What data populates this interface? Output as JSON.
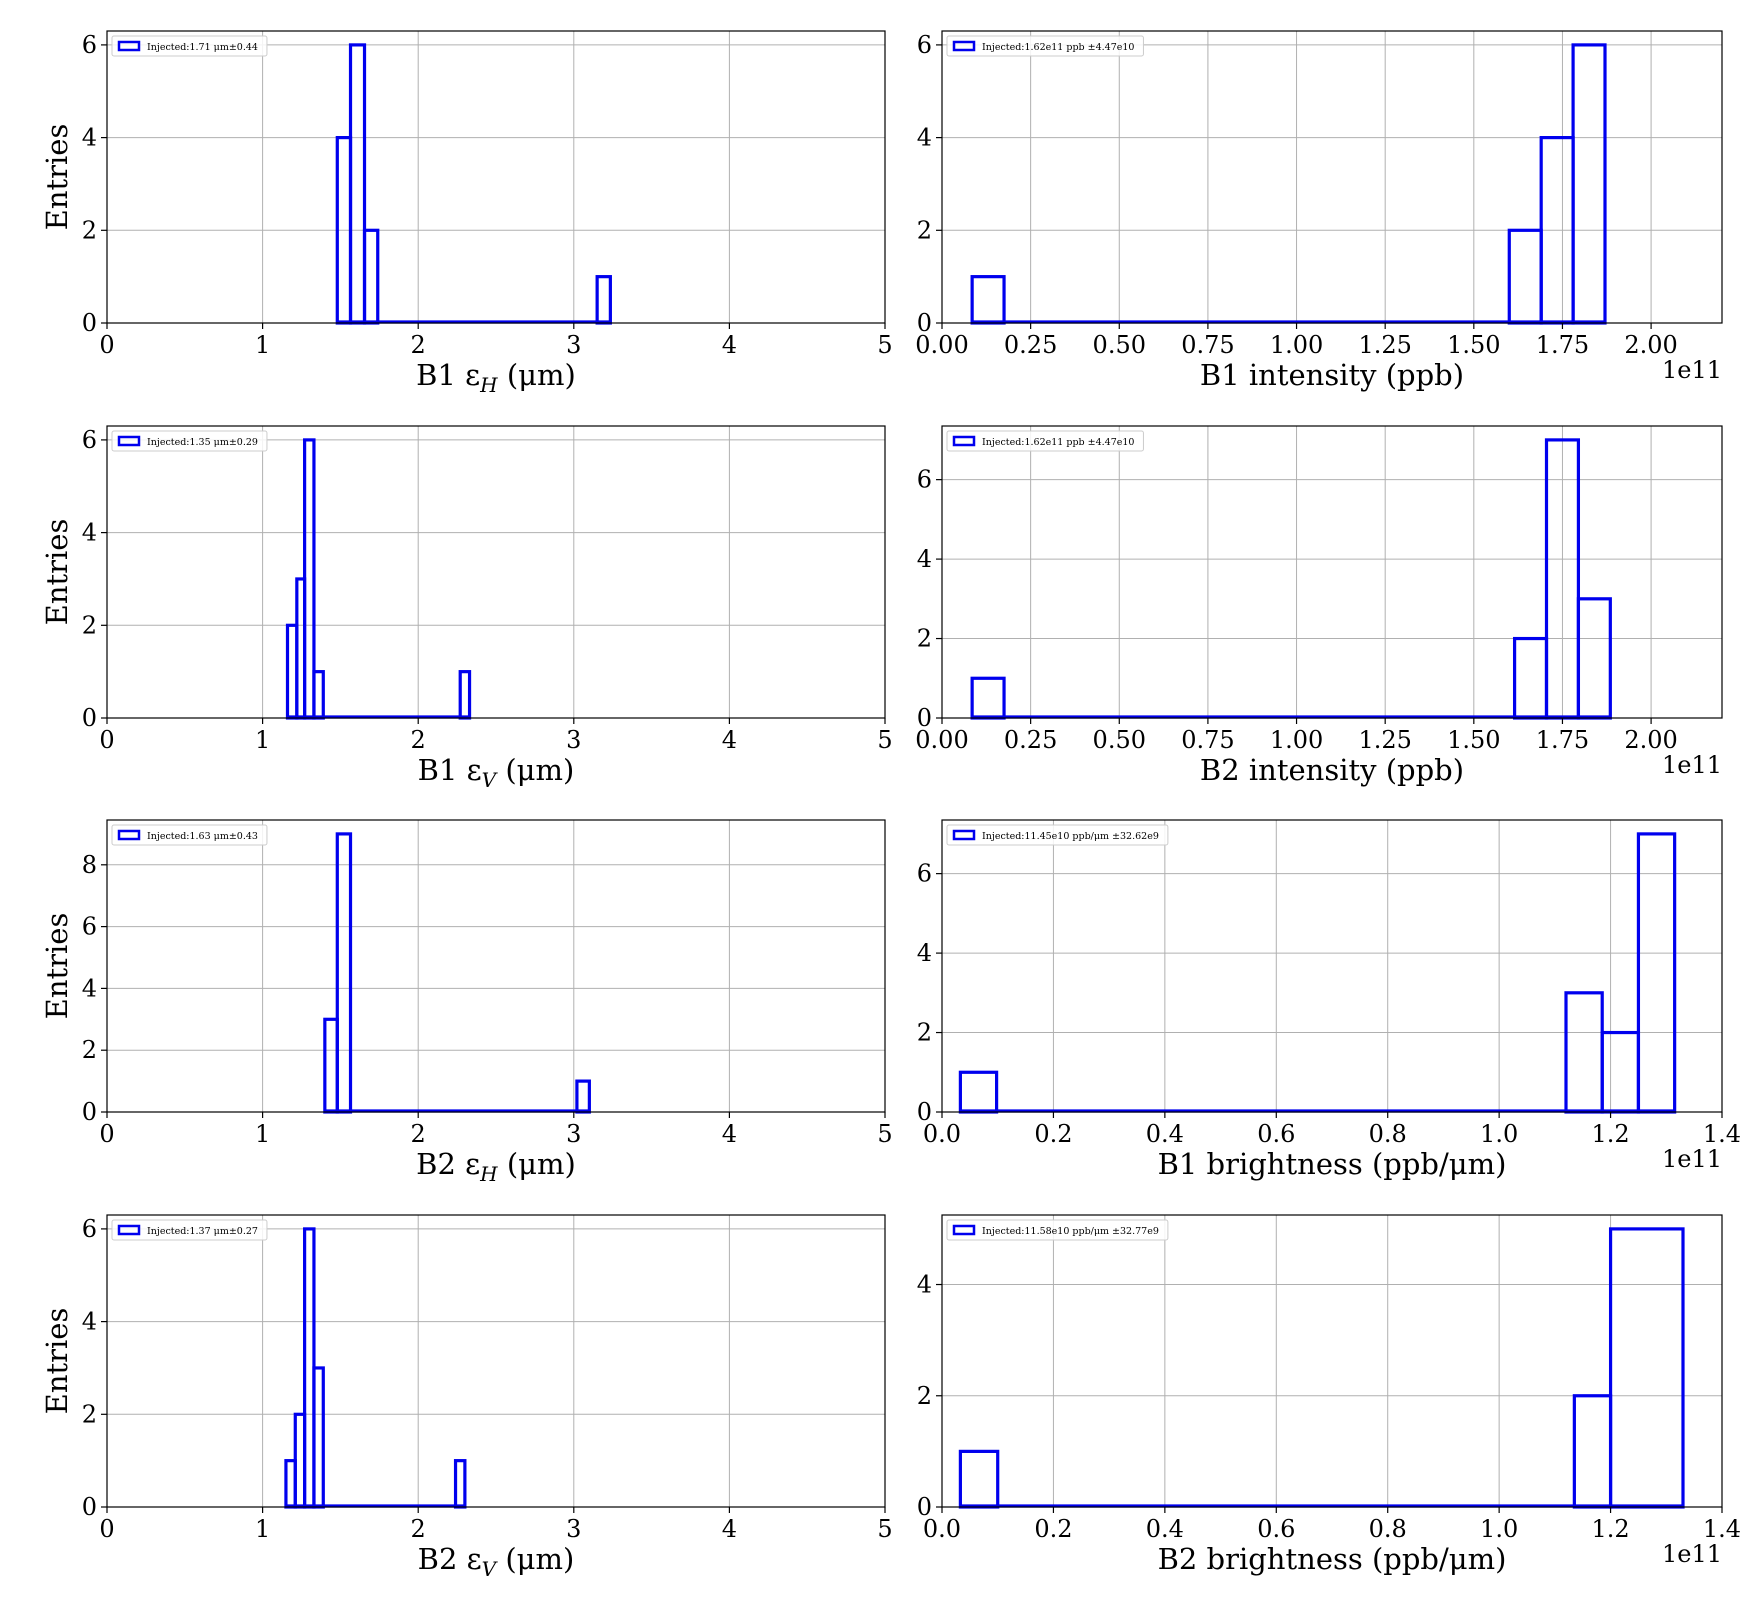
{
  "figure": {
    "chart_data": [
      {
        "type": "histogram",
        "xlabel": "B1 ε",
        "xlabel_sub": "H",
        "xlabel_unit": " (μm)",
        "ylabel": "Entries",
        "xlim": [
          0,
          5
        ],
        "ylim": [
          0,
          6.3
        ],
        "xticks": [
          0,
          1,
          2,
          3,
          4,
          5
        ],
        "xtick_labels": [
          "0",
          "1",
          "2",
          "3",
          "4",
          "5"
        ],
        "yticks": [
          0,
          2,
          4,
          6
        ],
        "ytick_labels": [
          "0",
          "2",
          "4",
          "6"
        ],
        "offset_text": "",
        "legend": "Injected:1.71 μm±0.44",
        "legend_loc": "upper left",
        "grid": true,
        "color": "#0000ee",
        "bins": [
          {
            "x0": 1.48,
            "x1": 1.565,
            "count": 4
          },
          {
            "x0": 1.565,
            "x1": 1.655,
            "count": 6
          },
          {
            "x0": 1.655,
            "x1": 1.74,
            "count": 2
          },
          {
            "x0": 3.15,
            "x1": 3.235,
            "count": 1
          }
        ]
      },
      {
        "type": "histogram",
        "xlabel": "B1 intensity (ppb)",
        "xlabel_sub": "",
        "xlabel_unit": "",
        "ylabel": "",
        "xlim": [
          0,
          2.2
        ],
        "ylim": [
          0,
          6.3
        ],
        "xticks": [
          0,
          0.25,
          0.5,
          0.75,
          1.0,
          1.25,
          1.5,
          1.75,
          2.0
        ],
        "xtick_labels": [
          "0.00",
          "0.25",
          "0.50",
          "0.75",
          "1.00",
          "1.25",
          "1.50",
          "1.75",
          "2.00"
        ],
        "yticks": [
          0,
          2,
          4,
          6
        ],
        "ytick_labels": [
          "0",
          "2",
          "4",
          "6"
        ],
        "offset_text": "1e11",
        "legend": "Injected:1.62e11 ppb ±4.47e10",
        "legend_loc": "upper left",
        "grid": true,
        "color": "#0000ee",
        "bins": [
          {
            "x0": 0.085,
            "x1": 0.175,
            "count": 1
          },
          {
            "x0": 1.6,
            "x1": 1.69,
            "count": 2
          },
          {
            "x0": 1.69,
            "x1": 1.78,
            "count": 4
          },
          {
            "x0": 1.78,
            "x1": 1.87,
            "count": 6
          }
        ]
      },
      {
        "type": "histogram",
        "xlabel": "B1 ε",
        "xlabel_sub": "V",
        "xlabel_unit": " (μm)",
        "ylabel": "Entries",
        "xlim": [
          0,
          5
        ],
        "ylim": [
          0,
          6.3
        ],
        "xticks": [
          0,
          1,
          2,
          3,
          4,
          5
        ],
        "xtick_labels": [
          "0",
          "1",
          "2",
          "3",
          "4",
          "5"
        ],
        "yticks": [
          0,
          2,
          4,
          6
        ],
        "ytick_labels": [
          "0",
          "2",
          "4",
          "6"
        ],
        "offset_text": "",
        "legend": "Injected:1.35 μm±0.29",
        "legend_loc": "upper left",
        "grid": true,
        "color": "#0000ee",
        "bins": [
          {
            "x0": 1.16,
            "x1": 1.22,
            "count": 2
          },
          {
            "x0": 1.22,
            "x1": 1.27,
            "count": 3
          },
          {
            "x0": 1.27,
            "x1": 1.33,
            "count": 6
          },
          {
            "x0": 1.33,
            "x1": 1.39,
            "count": 1
          },
          {
            "x0": 2.27,
            "x1": 2.33,
            "count": 1
          }
        ]
      },
      {
        "type": "histogram",
        "xlabel": "B2 intensity (ppb)",
        "xlabel_sub": "",
        "xlabel_unit": "",
        "ylabel": "",
        "xlim": [
          0,
          2.2
        ],
        "ylim": [
          0,
          7.35
        ],
        "xticks": [
          0,
          0.25,
          0.5,
          0.75,
          1.0,
          1.25,
          1.5,
          1.75,
          2.0
        ],
        "xtick_labels": [
          "0.00",
          "0.25",
          "0.50",
          "0.75",
          "1.00",
          "1.25",
          "1.50",
          "1.75",
          "2.00"
        ],
        "yticks": [
          0,
          2,
          4,
          6
        ],
        "ytick_labels": [
          "0",
          "2",
          "4",
          "6"
        ],
        "offset_text": "1e11",
        "legend": "Injected:1.62e11 ppb ±4.47e10",
        "legend_loc": "upper left",
        "grid": true,
        "color": "#0000ee",
        "bins": [
          {
            "x0": 0.085,
            "x1": 0.175,
            "count": 1
          },
          {
            "x0": 1.615,
            "x1": 1.705,
            "count": 2
          },
          {
            "x0": 1.705,
            "x1": 1.795,
            "count": 7
          },
          {
            "x0": 1.795,
            "x1": 1.885,
            "count": 3
          }
        ]
      },
      {
        "type": "histogram",
        "xlabel": "B2 ε",
        "xlabel_sub": "H",
        "xlabel_unit": " (μm)",
        "ylabel": "Entries",
        "xlim": [
          0,
          5
        ],
        "ylim": [
          0,
          9.45
        ],
        "xticks": [
          0,
          1,
          2,
          3,
          4,
          5
        ],
        "xtick_labels": [
          "0",
          "1",
          "2",
          "3",
          "4",
          "5"
        ],
        "yticks": [
          0,
          2,
          4,
          6,
          8
        ],
        "ytick_labels": [
          "0",
          "2",
          "4",
          "6",
          "8"
        ],
        "offset_text": "",
        "legend": "Injected:1.63 μm±0.43",
        "legend_loc": "upper left",
        "grid": true,
        "color": "#0000ee",
        "bins": [
          {
            "x0": 1.4,
            "x1": 1.48,
            "count": 3
          },
          {
            "x0": 1.48,
            "x1": 1.565,
            "count": 9
          },
          {
            "x0": 3.02,
            "x1": 3.1,
            "count": 1
          }
        ]
      },
      {
        "type": "histogram",
        "xlabel": "B1 brightness (ppb/",
        "xlabel_sub": "",
        "xlabel_unit": "μm)",
        "xlabel_italic_unit": true,
        "ylabel": "",
        "xlim": [
          0,
          1.4
        ],
        "ylim": [
          0,
          7.35
        ],
        "xticks": [
          0,
          0.2,
          0.4,
          0.6,
          0.8,
          1.0,
          1.2,
          1.4
        ],
        "xtick_labels": [
          "0.0",
          "0.2",
          "0.4",
          "0.6",
          "0.8",
          "1.0",
          "1.2",
          "1.4"
        ],
        "yticks": [
          0,
          2,
          4,
          6
        ],
        "ytick_labels": [
          "0",
          "2",
          "4",
          "6"
        ],
        "offset_text": "1e11",
        "legend": "Injected:11.45e10 ppb/μm ±32.62e9",
        "legend_loc": "upper left",
        "grid": true,
        "color": "#0000ee",
        "bins": [
          {
            "x0": 0.033,
            "x1": 0.098,
            "count": 1
          },
          {
            "x0": 1.12,
            "x1": 1.185,
            "count": 3
          },
          {
            "x0": 1.185,
            "x1": 1.25,
            "count": 2
          },
          {
            "x0": 1.25,
            "x1": 1.315,
            "count": 7
          }
        ]
      },
      {
        "type": "histogram",
        "xlabel": "B2 ε",
        "xlabel_sub": "V",
        "xlabel_unit": " (μm)",
        "ylabel": "Entries",
        "xlim": [
          0,
          5
        ],
        "ylim": [
          0,
          6.3
        ],
        "xticks": [
          0,
          1,
          2,
          3,
          4,
          5
        ],
        "xtick_labels": [
          "0",
          "1",
          "2",
          "3",
          "4",
          "5"
        ],
        "yticks": [
          0,
          2,
          4,
          6
        ],
        "ytick_labels": [
          "0",
          "2",
          "4",
          "6"
        ],
        "offset_text": "",
        "legend": "Injected:1.37 μm±0.27",
        "legend_loc": "upper left",
        "grid": true,
        "color": "#0000ee",
        "bins": [
          {
            "x0": 1.15,
            "x1": 1.21,
            "count": 1
          },
          {
            "x0": 1.21,
            "x1": 1.27,
            "count": 2
          },
          {
            "x0": 1.27,
            "x1": 1.33,
            "count": 6
          },
          {
            "x0": 1.33,
            "x1": 1.39,
            "count": 3
          },
          {
            "x0": 2.24,
            "x1": 2.3,
            "count": 1
          }
        ]
      },
      {
        "type": "histogram",
        "xlabel": "B2 brightness (ppb/",
        "xlabel_sub": "",
        "xlabel_unit": "μm)",
        "xlabel_italic_unit": true,
        "ylabel": "",
        "xlim": [
          0,
          1.4
        ],
        "ylim": [
          0,
          5.25
        ],
        "xticks": [
          0,
          0.2,
          0.4,
          0.6,
          0.8,
          1.0,
          1.2,
          1.4
        ],
        "xtick_labels": [
          "0.0",
          "0.2",
          "0.4",
          "0.6",
          "0.8",
          "1.0",
          "1.2",
          "1.4"
        ],
        "yticks": [
          0,
          2,
          4
        ],
        "ytick_labels": [
          "0",
          "2",
          "4"
        ],
        "offset_text": "1e11",
        "legend": "Injected:11.58e10 ppb/μm ±32.77e9",
        "legend_loc": "upper left",
        "grid": true,
        "color": "#0000ee",
        "bins": [
          {
            "x0": 0.033,
            "x1": 0.1,
            "count": 1
          },
          {
            "x0": 1.135,
            "x1": 1.2,
            "count": 2
          },
          {
            "x0": 1.2,
            "x1": 1.33,
            "count": 5
          }
        ]
      }
    ]
  }
}
